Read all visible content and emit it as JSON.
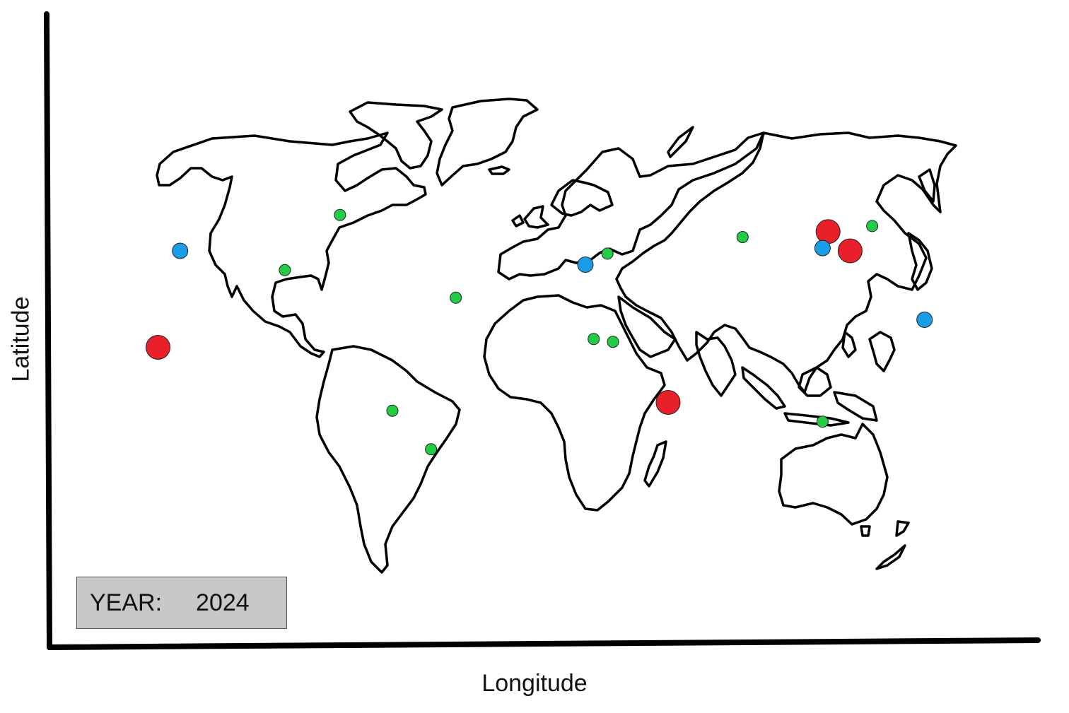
{
  "axes": {
    "x_label": "Longitude",
    "y_label": "Latitude"
  },
  "year_box": {
    "label": "YEAR:",
    "value": "2024"
  },
  "colors": {
    "background": "#ffffff",
    "coastline": "#000000",
    "year_box_fill": "#c8c8c8",
    "large_marker": "#e8202a",
    "medium_marker": "#1a9de8",
    "small_marker": "#22cc44"
  },
  "chart_data": {
    "type": "scatter",
    "title": "",
    "xlabel": "Longitude",
    "ylabel": "Latitude",
    "xlim": [
      -180,
      180
    ],
    "ylim": [
      -60,
      85
    ],
    "grid": false,
    "legend": "none",
    "series": [
      {
        "color": "#e8202a",
        "marker_size": "large",
        "points": [
          {
            "x": -145,
            "y": 15
          },
          {
            "x": 40,
            "y": -5
          },
          {
            "x": 98,
            "y": 57
          },
          {
            "x": 106,
            "y": 50
          }
        ]
      },
      {
        "color": "#1a9de8",
        "marker_size": "medium",
        "points": [
          {
            "x": -137,
            "y": 50
          },
          {
            "x": 10,
            "y": 45
          },
          {
            "x": 96,
            "y": 51
          },
          {
            "x": 133,
            "y": 25
          }
        ]
      },
      {
        "color": "#22cc44",
        "marker_size": "small",
        "points": [
          {
            "x": -79,
            "y": 63
          },
          {
            "x": -99,
            "y": 43
          },
          {
            "x": -37,
            "y": 33
          },
          {
            "x": 18,
            "y": 49
          },
          {
            "x": 67,
            "y": 55
          },
          {
            "x": 114,
            "y": 59
          },
          {
            "x": 13,
            "y": 18
          },
          {
            "x": 20,
            "y": 17
          },
          {
            "x": -60,
            "y": -8
          },
          {
            "x": -46,
            "y": -22
          },
          {
            "x": 96,
            "y": -12
          }
        ]
      }
    ]
  }
}
